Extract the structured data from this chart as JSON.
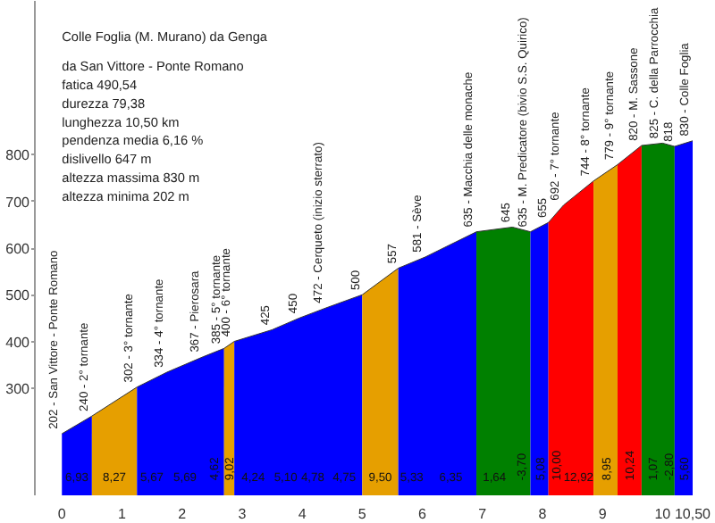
{
  "chart_data": {
    "type": "area",
    "title": "Colle Foglia (M. Murano) da Genga",
    "annotations": [
      "da San Vittore - Ponte Romano",
      "fatica 490,54",
      "durezza 79,38",
      "lunghezza 10,50 km",
      "pendenza media 6,16 %",
      "dislivello 647 m",
      "altezza massima 830 m",
      "altezza minima 202 m",
      "6,93",
      "8,27",
      "5,67",
      "5,69",
      "4,62",
      "9,02",
      "4,24",
      "5,10",
      "4,78",
      "4,75",
      "9,50",
      "5,33",
      "6,35",
      "1,64",
      "-3,70",
      "5,08",
      "10,00",
      "12,92",
      "8,95",
      "10,24",
      "1,07",
      "-2,80",
      "5,60"
    ],
    "series": [
      {
        "color": "#0000ff",
        "x": [
          0,
          0.5
        ],
        "values": [
          202,
          240
        ],
        "value_labels": [
          "202 - San Vittore - Ponte Romano",
          null
        ]
      },
      {
        "color": "#e69f00",
        "x": [
          0.5,
          1.25
        ],
        "values": [
          240,
          302
        ],
        "value_labels": [
          "240 - 2° tornante",
          null
        ]
      },
      {
        "color": "#0000ff",
        "x": [
          1.25,
          1.75,
          2.35,
          2.7
        ],
        "values": [
          302,
          334,
          367,
          385
        ],
        "value_labels": [
          "302 - 3° tornante",
          "334 - 4° tornante",
          "367 - Pierosara",
          null
        ]
      },
      {
        "color": "#e69f00",
        "x": [
          2.7,
          2.87
        ],
        "values": [
          385,
          400
        ],
        "value_labels": [
          "385 - 5° tornante",
          null
        ]
      },
      {
        "color": "#0000ff",
        "x": [
          2.87,
          3.5,
          3.95,
          4.4,
          5.0
        ],
        "values": [
          400,
          425,
          450,
          472,
          500
        ],
        "value_labels": [
          "400 - 6° tornante",
          "425",
          "450",
          "472 - Cerqueto (inizio sterrato)",
          null
        ]
      },
      {
        "color": "#e69f00",
        "x": [
          5.0,
          5.6
        ],
        "values": [
          500,
          557
        ],
        "value_labels": [
          "500",
          null
        ]
      },
      {
        "color": "#0000ff",
        "x": [
          5.6,
          6.05,
          6.9
        ],
        "values": [
          557,
          581,
          635
        ],
        "value_labels": [
          "557",
          "581 - Sève",
          null
        ]
      },
      {
        "color": "#008000",
        "x": [
          6.9,
          7.5,
          7.8
        ],
        "values": [
          635,
          645,
          635
        ],
        "value_labels": [
          "635 - Macchia delle monache",
          "645",
          null
        ]
      },
      {
        "color": "#0000ff",
        "x": [
          7.8,
          8.1
        ],
        "values": [
          635,
          655
        ],
        "value_labels": [
          "635 - M. Predicatore (bivio S.S. Quirico)",
          null
        ]
      },
      {
        "color": "#ff0000",
        "x": [
          8.1,
          8.35,
          8.85
        ],
        "values": [
          655,
          692,
          744
        ],
        "value_labels": [
          "655",
          "692 - 7° tornante",
          null
        ]
      },
      {
        "color": "#e69f00",
        "x": [
          8.85,
          9.25
        ],
        "values": [
          744,
          779
        ],
        "value_labels": [
          "744 - 8° tornante",
          null
        ]
      },
      {
        "color": "#ff0000",
        "x": [
          9.25,
          9.65
        ],
        "values": [
          779,
          820
        ],
        "value_labels": [
          "779 - 9° tornante",
          null
        ]
      },
      {
        "color": "#008000",
        "x": [
          9.65,
          10.0,
          10.2
        ],
        "values": [
          820,
          825,
          818
        ],
        "value_labels": [
          "820 - M. Sassone",
          "825 - C. della Parrocchia",
          null
        ]
      },
      {
        "color": "#0000ff",
        "x": [
          10.2,
          10.5
        ],
        "values": [
          818,
          830
        ],
        "value_labels": [
          "818",
          "830 - Colle Foglia"
        ]
      }
    ],
    "xlim": [
      -0.45,
      10.5
    ],
    "ylim": [
      70,
      1130
    ],
    "xticks": [
      0,
      1,
      2,
      3,
      4,
      5,
      6,
      7,
      8,
      9,
      10,
      {
        "value": 10.5,
        "label": "10,50"
      }
    ],
    "yticks": [
      300,
      400,
      500,
      600,
      700,
      800
    ],
    "grid": false
  }
}
